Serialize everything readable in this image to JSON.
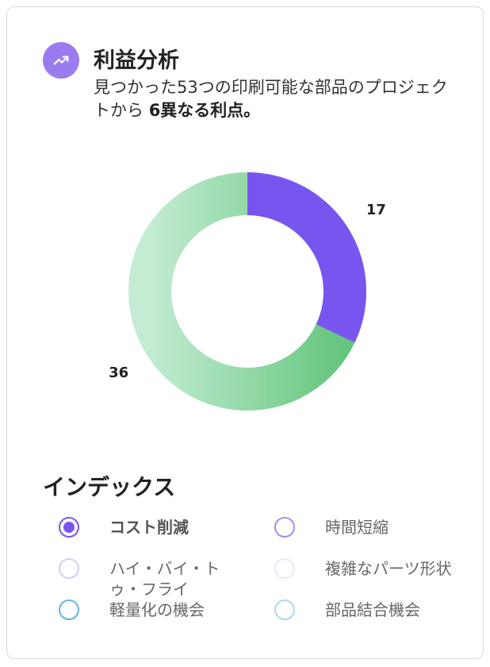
{
  "header": {
    "icon": "trending-up-icon",
    "title": "利益分析",
    "subtitle_prefix": "見つかった53つの印刷可能な部品のプロジェクトから",
    "subtitle_bold": "6異なる利点。"
  },
  "chart_data": {
    "type": "pie",
    "style": "donut",
    "slices": [
      {
        "label": "17",
        "value": 17,
        "color": "#7755ee"
      },
      {
        "label": "36",
        "value": 36,
        "color": "#6ecb87"
      }
    ]
  },
  "legend": {
    "title": "インデックス",
    "items": [
      {
        "label": "コスト削減",
        "color": "#7a55ec",
        "selected": true
      },
      {
        "label": "時間短縮",
        "color": "#a98bef",
        "selected": false
      },
      {
        "label": "ハイ・バイ・トゥ・フライ",
        "color": "#d8ccf8",
        "selected": false
      },
      {
        "label": "複雑なパーツ形状",
        "color": "#ece7fb",
        "selected": false
      },
      {
        "label": "軽量化の機会",
        "color": "#5fb3ee",
        "selected": false
      },
      {
        "label": "部品結合機会",
        "color": "#a9d7f5",
        "selected": false
      }
    ]
  }
}
